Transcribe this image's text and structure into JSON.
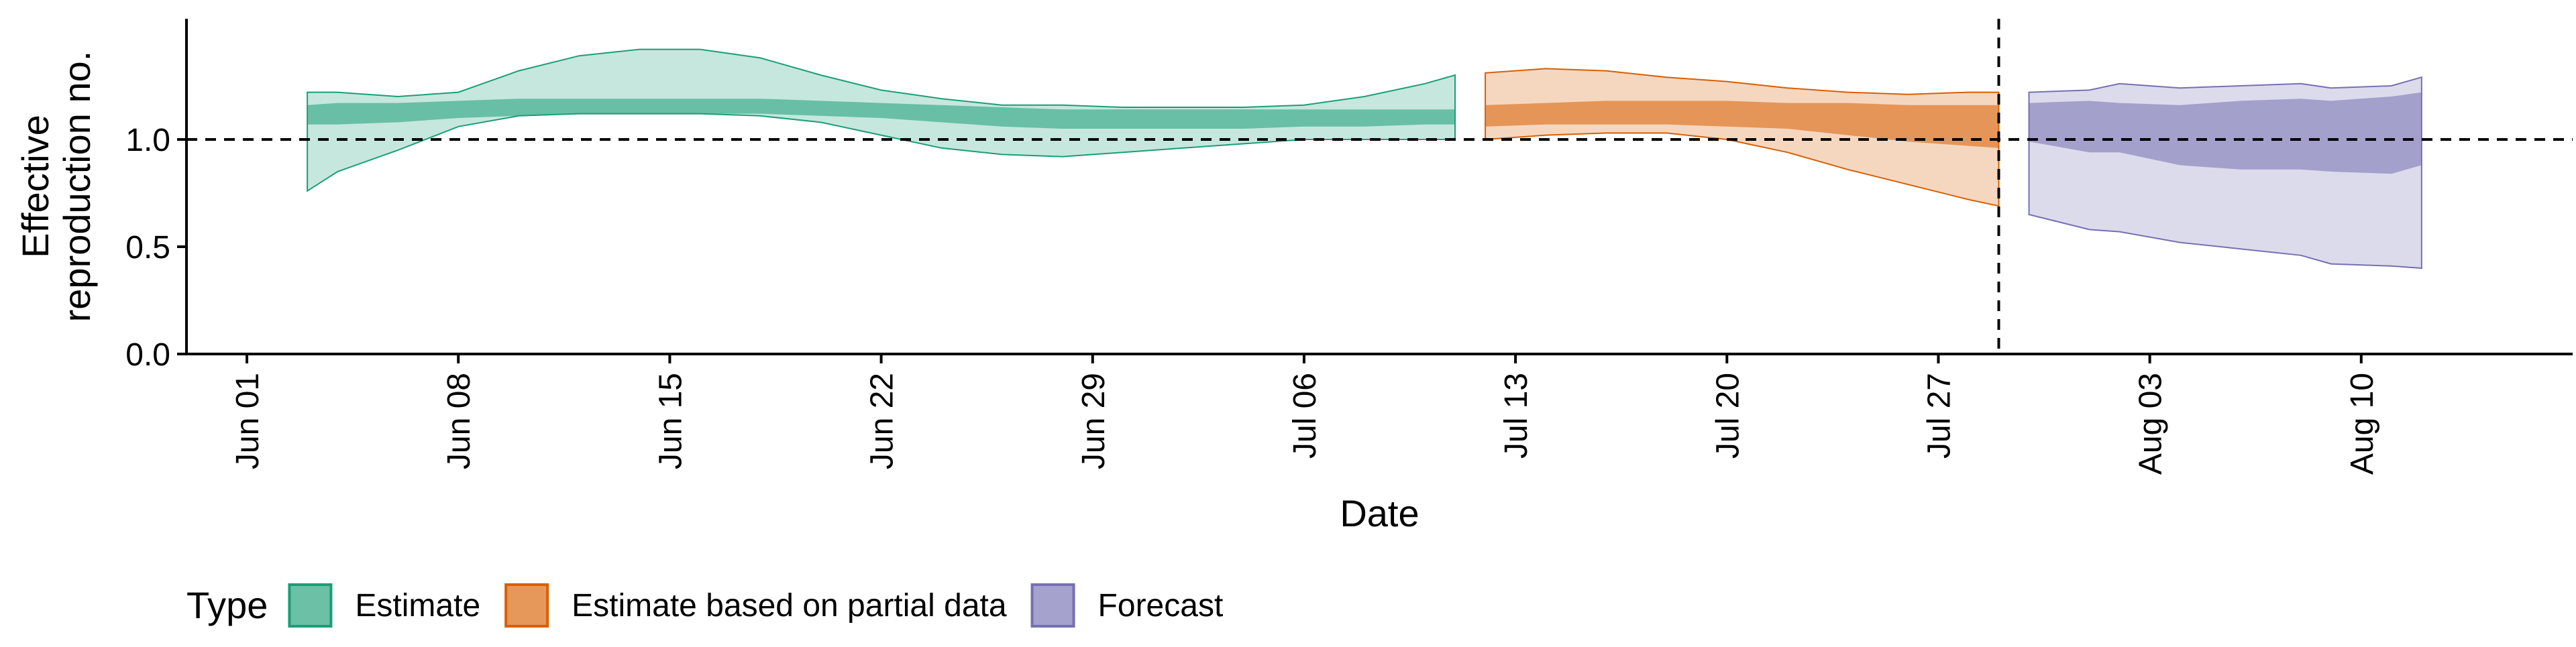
{
  "chart_data": {
    "type": "area",
    "ylabel_lines": [
      "Effective",
      "reproduction no."
    ],
    "xlabel": "Date",
    "ylim": [
      0,
      1.5
    ],
    "y_ticks": [
      0.0,
      0.5,
      1.0
    ],
    "y_tick_labels": [
      "0.0",
      "0.5",
      "1.0"
    ],
    "x_range": [
      "2020-05-30",
      "2020-08-17"
    ],
    "x_ticks": [
      "2020-06-01",
      "2020-06-08",
      "2020-06-15",
      "2020-06-22",
      "2020-06-29",
      "2020-07-06",
      "2020-07-13",
      "2020-07-20",
      "2020-07-27",
      "2020-08-03",
      "2020-08-10"
    ],
    "x_tick_labels": [
      "Jun 01",
      "Jun 08",
      "Jun 15",
      "Jun 22",
      "Jun 29",
      "Jul 06",
      "Jul 13",
      "Jul 20",
      "Jul 27",
      "Aug 03",
      "Aug 10"
    ],
    "reference_line": {
      "y": 1.0
    },
    "vertical_line": {
      "x": "2020-07-29"
    },
    "legend": {
      "title": "Type",
      "position": "bottom",
      "items": [
        "Estimate",
        "Estimate based on partial data",
        "Forecast"
      ]
    },
    "series": [
      {
        "name": "Estimate",
        "color": "#1b9e77",
        "x": [
          "2020-06-03",
          "2020-06-04",
          "2020-06-06",
          "2020-06-08",
          "2020-06-10",
          "2020-06-12",
          "2020-06-14",
          "2020-06-16",
          "2020-06-18",
          "2020-06-20",
          "2020-06-22",
          "2020-06-24",
          "2020-06-26",
          "2020-06-28",
          "2020-06-30",
          "2020-07-02",
          "2020-07-04",
          "2020-07-06",
          "2020-07-08",
          "2020-07-10",
          "2020-07-11"
        ],
        "upper_90": [
          1.22,
          1.22,
          1.2,
          1.22,
          1.32,
          1.39,
          1.42,
          1.42,
          1.38,
          1.3,
          1.23,
          1.19,
          1.16,
          1.16,
          1.15,
          1.15,
          1.15,
          1.16,
          1.2,
          1.26,
          1.3
        ],
        "upper_50": [
          1.16,
          1.17,
          1.17,
          1.18,
          1.19,
          1.19,
          1.19,
          1.19,
          1.19,
          1.18,
          1.17,
          1.16,
          1.15,
          1.14,
          1.14,
          1.14,
          1.14,
          1.14,
          1.14,
          1.14,
          1.14
        ],
        "lower_50": [
          1.07,
          1.07,
          1.08,
          1.1,
          1.11,
          1.12,
          1.12,
          1.12,
          1.12,
          1.11,
          1.1,
          1.08,
          1.06,
          1.05,
          1.05,
          1.05,
          1.05,
          1.06,
          1.06,
          1.07,
          1.07
        ],
        "lower_90": [
          0.76,
          0.85,
          0.95,
          1.06,
          1.11,
          1.12,
          1.12,
          1.12,
          1.11,
          1.08,
          1.02,
          0.96,
          0.93,
          0.92,
          0.94,
          0.96,
          0.98,
          1.0,
          1.0,
          1.0,
          1.0
        ]
      },
      {
        "name": "Estimate based on partial data",
        "color": "#d95f02",
        "x": [
          "2020-07-12",
          "2020-07-14",
          "2020-07-16",
          "2020-07-18",
          "2020-07-20",
          "2020-07-22",
          "2020-07-24",
          "2020-07-26",
          "2020-07-28",
          "2020-07-29"
        ],
        "upper_90": [
          1.31,
          1.33,
          1.32,
          1.29,
          1.27,
          1.24,
          1.22,
          1.21,
          1.22,
          1.22
        ],
        "upper_50": [
          1.16,
          1.17,
          1.18,
          1.18,
          1.18,
          1.17,
          1.17,
          1.16,
          1.16,
          1.16
        ],
        "lower_50": [
          1.06,
          1.07,
          1.07,
          1.07,
          1.06,
          1.05,
          1.02,
          0.99,
          0.97,
          0.96
        ],
        "lower_90": [
          1.0,
          1.02,
          1.03,
          1.03,
          1.0,
          0.94,
          0.86,
          0.79,
          0.72,
          0.69
        ]
      },
      {
        "name": "Forecast",
        "color": "#7570b3",
        "x": [
          "2020-07-30",
          "2020-08-01",
          "2020-08-02",
          "2020-08-04",
          "2020-08-06",
          "2020-08-08",
          "2020-08-09",
          "2020-08-11",
          "2020-08-12"
        ],
        "upper_90": [
          1.22,
          1.23,
          1.26,
          1.24,
          1.25,
          1.26,
          1.24,
          1.25,
          1.29
        ],
        "upper_50": [
          1.17,
          1.18,
          1.17,
          1.16,
          1.18,
          1.19,
          1.18,
          1.2,
          1.22
        ],
        "lower_50": [
          0.99,
          0.94,
          0.94,
          0.88,
          0.86,
          0.86,
          0.85,
          0.84,
          0.88
        ],
        "lower_90": [
          0.65,
          0.58,
          0.57,
          0.52,
          0.49,
          0.46,
          0.42,
          0.41,
          0.4
        ]
      }
    ]
  }
}
